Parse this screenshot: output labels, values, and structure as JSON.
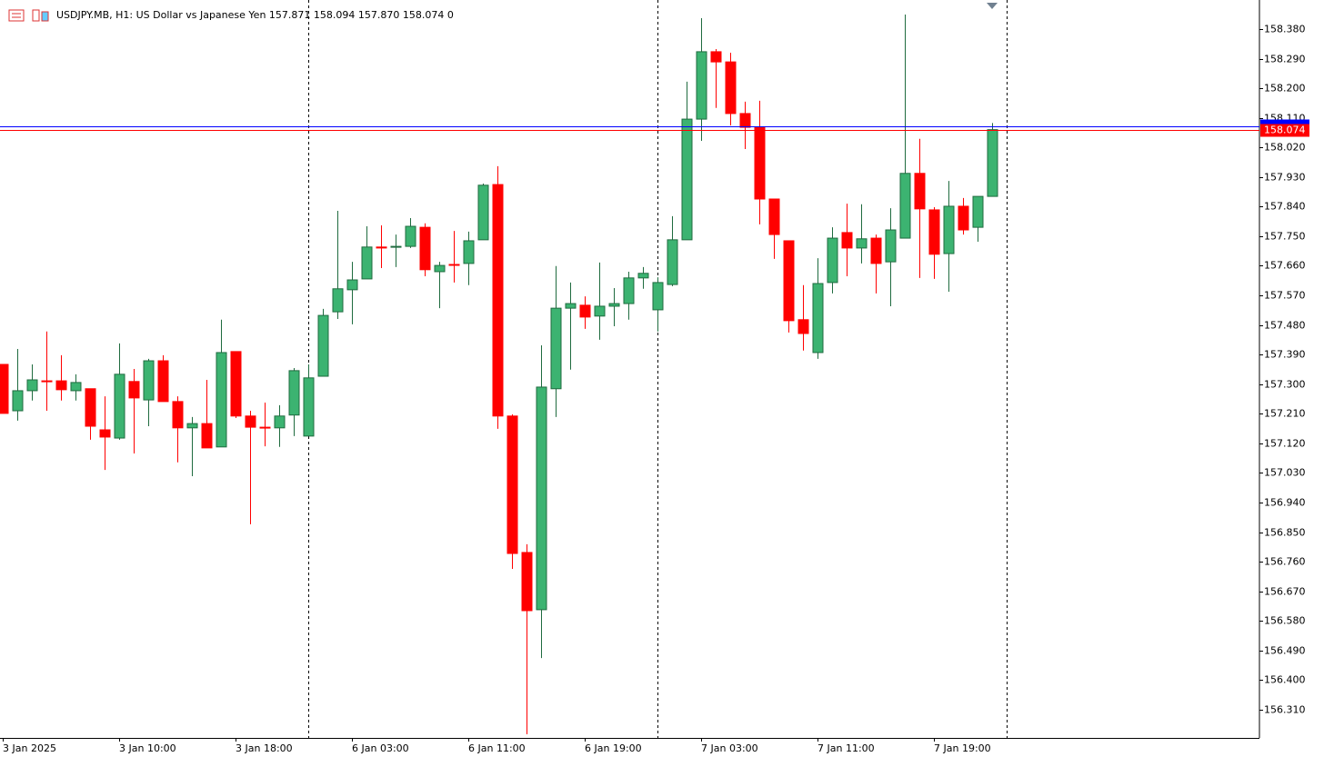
{
  "chart_data": {
    "type": "candlestick",
    "title": "USDJPY.MB, H1:  US Dollar vs Japanese Yen  157.871 158.094 157.870 158.074  0",
    "categories": [
      "3 Jan 2025",
      null,
      null,
      null,
      null,
      null,
      null,
      null,
      "3 Jan 10:00",
      null,
      null,
      null,
      null,
      null,
      null,
      null,
      "3 Jan 18:00",
      null,
      null,
      null,
      null,
      null,
      null,
      null,
      "6 Jan 03:00",
      null,
      null,
      null,
      null,
      null,
      null,
      null,
      "6 Jan 11:00",
      null,
      null,
      null,
      null,
      null,
      null,
      null,
      "6 Jan 19:00",
      null,
      null,
      null,
      null,
      null,
      null,
      null,
      "7 Jan 03:00",
      null,
      null,
      null,
      null,
      null,
      null,
      null,
      "7 Jan 11:00",
      null,
      null,
      null,
      null,
      null,
      null,
      null,
      "7 Jan 19:00",
      null,
      null,
      null,
      null
    ],
    "open": [
      157.36,
      157.219,
      157.28,
      157.31,
      157.31,
      157.28,
      157.286,
      157.161,
      157.136,
      157.308,
      157.252,
      157.371,
      157.247,
      157.167,
      157.18,
      157.109,
      157.399,
      157.203,
      157.169,
      157.167,
      157.206,
      157.142,
      157.324,
      157.52,
      157.587,
      157.62,
      157.717,
      157.717,
      157.719,
      157.777,
      157.642,
      157.664,
      157.667,
      157.739,
      157.907,
      157.203,
      156.788,
      156.614,
      157.286,
      157.531,
      157.54,
      157.507,
      157.537,
      157.545,
      157.623,
      157.526,
      157.603,
      157.739,
      158.106,
      158.311,
      158.28,
      158.123,
      158.081,
      157.863,
      157.736,
      157.496,
      157.396,
      157.609,
      157.761,
      157.714,
      157.744,
      157.672,
      157.744,
      157.941,
      157.83,
      157.697,
      157.841,
      157.777,
      157.871
    ],
    "high": [
      157.36,
      157.407,
      157.36,
      157.46,
      157.388,
      157.33,
      157.286,
      157.263,
      157.424,
      157.346,
      157.377,
      157.388,
      157.263,
      157.2,
      157.313,
      157.496,
      157.399,
      157.219,
      157.244,
      157.236,
      157.349,
      157.36,
      157.529,
      157.827,
      157.672,
      157.78,
      157.783,
      157.755,
      157.805,
      157.789,
      157.672,
      157.766,
      157.764,
      157.91,
      157.963,
      157.208,
      156.813,
      157.418,
      157.659,
      157.609,
      157.567,
      157.67,
      157.592,
      157.642,
      157.656,
      157.625,
      157.811,
      158.22,
      158.413,
      158.319,
      158.308,
      158.159,
      158.162,
      157.863,
      157.736,
      157.601,
      157.683,
      157.777,
      157.849,
      157.847,
      157.755,
      157.835,
      158.424,
      158.046,
      157.838,
      157.918,
      157.866,
      157.871,
      158.094
    ],
    "low": [
      157.211,
      157.189,
      157.25,
      157.219,
      157.25,
      157.25,
      157.131,
      157.039,
      157.131,
      157.089,
      157.172,
      157.247,
      157.062,
      157.02,
      157.106,
      157.109,
      157.197,
      156.874,
      157.111,
      157.109,
      157.142,
      157.142,
      157.324,
      157.498,
      157.482,
      157.62,
      157.653,
      157.656,
      157.714,
      157.628,
      157.531,
      157.609,
      157.601,
      157.739,
      157.164,
      156.738,
      156.235,
      156.467,
      157.2,
      157.344,
      157.468,
      157.435,
      157.476,
      157.496,
      157.59,
      157.46,
      157.598,
      157.739,
      158.04,
      158.14,
      158.087,
      158.015,
      157.786,
      157.681,
      157.457,
      157.402,
      157.377,
      157.576,
      157.628,
      157.667,
      157.576,
      157.537,
      157.744,
      157.623,
      157.62,
      157.581,
      157.755,
      157.733,
      157.87
    ],
    "close": [
      157.211,
      157.28,
      157.313,
      157.309,
      157.283,
      157.305,
      157.172,
      157.139,
      157.33,
      157.258,
      157.371,
      157.247,
      157.167,
      157.18,
      157.106,
      157.396,
      157.203,
      157.169,
      157.167,
      157.203,
      157.341,
      157.319,
      157.509,
      157.59,
      157.617,
      157.717,
      157.714,
      157.719,
      157.78,
      157.648,
      157.661,
      157.663,
      157.736,
      157.905,
      157.203,
      156.785,
      156.611,
      157.291,
      157.531,
      157.545,
      157.504,
      157.537,
      157.545,
      157.623,
      157.637,
      157.609,
      157.739,
      158.106,
      158.311,
      158.28,
      158.123,
      158.081,
      157.863,
      157.755,
      157.493,
      157.454,
      157.606,
      157.744,
      157.714,
      157.742,
      157.667,
      157.769,
      157.941,
      157.833,
      157.695,
      157.841,
      157.769,
      157.871,
      158.074
    ],
    "up_color": "#3cb371",
    "down_color": "#ff0000",
    "ylim": [
      156.224,
      158.46
    ],
    "yticks": [
      {
        "value": 156.31,
        "label": "156.310"
      },
      {
        "value": 156.4,
        "label": "156.400"
      },
      {
        "value": 156.49,
        "label": "156.490"
      },
      {
        "value": 156.58,
        "label": "156.580"
      },
      {
        "value": 156.67,
        "label": "156.670"
      },
      {
        "value": 156.76,
        "label": "156.760"
      },
      {
        "value": 156.85,
        "label": "156.850"
      },
      {
        "value": 156.94,
        "label": "156.940"
      },
      {
        "value": 157.03,
        "label": "157.030"
      },
      {
        "value": 157.12,
        "label": "157.120"
      },
      {
        "value": 157.21,
        "label": "157.210"
      },
      {
        "value": 157.3,
        "label": "157.300"
      },
      {
        "value": 157.39,
        "label": "157.390"
      },
      {
        "value": 157.48,
        "label": "157.480"
      },
      {
        "value": 157.57,
        "label": "157.570"
      },
      {
        "value": 157.66,
        "label": "157.660"
      },
      {
        "value": 157.75,
        "label": "157.750"
      },
      {
        "value": 157.84,
        "label": "157.840"
      },
      {
        "value": 157.93,
        "label": "157.930"
      },
      {
        "value": 158.02,
        "label": "158.020"
      },
      {
        "value": 158.11,
        "label": "158.110"
      },
      {
        "value": 158.2,
        "label": "158.200"
      },
      {
        "value": 158.29,
        "label": "158.290"
      },
      {
        "value": 158.38,
        "label": "158.380"
      }
    ],
    "period_separators": [
      21,
      45,
      69
    ],
    "price_lines": [
      {
        "value": 158.084,
        "color": "#0000ff"
      },
      {
        "value": 158.074,
        "label": "158.074",
        "color": "#ff0000"
      }
    ],
    "grid": false
  }
}
